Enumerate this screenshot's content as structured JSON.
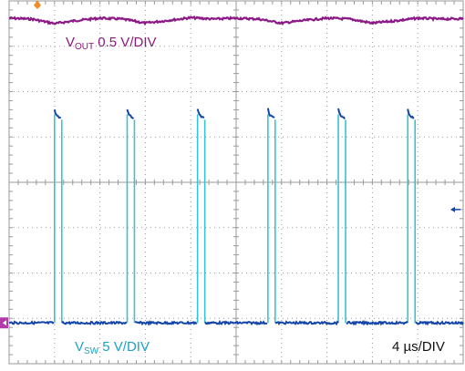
{
  "colors": {
    "vout": "#8b1a87",
    "vsw_edge": "#37c4d2",
    "vsw_trace": "#1446a8",
    "grid": "#9a9a9a",
    "trigger_marker": "#f08c2a",
    "ch_marker": "#b33aa8"
  },
  "labels": {
    "vout_prefix": "V",
    "vout_sub": "OUT",
    "vout_scale": " 0.5 V/DIV",
    "vsw_prefix": "V",
    "vsw_sub": "SW",
    "vsw_scale": " 5 V/DIV",
    "timebase": "4 µs/DIV"
  },
  "chart_data": {
    "type": "line",
    "x_divisions": 10,
    "y_divisions": 8,
    "x_unit": "µs",
    "time_per_div": 4,
    "series": [
      {
        "name": "VOUT",
        "volts_per_div": 0.5,
        "x_div": [
          0,
          0.5,
          1,
          1.5,
          2,
          2.5,
          3,
          3.5,
          4,
          4.5,
          5,
          5.5,
          6,
          6.5,
          7,
          7.5,
          8,
          8.5,
          9,
          9.5,
          10
        ],
        "y_div": [
          7.62,
          7.6,
          7.5,
          7.57,
          7.62,
          7.6,
          7.51,
          7.57,
          7.63,
          7.6,
          7.62,
          7.6,
          7.51,
          7.57,
          7.62,
          7.6,
          7.51,
          7.56,
          7.62,
          7.6,
          7.61
        ]
      },
      {
        "name": "VSW",
        "volts_per_div": 5,
        "low_div": 0.9,
        "high_div": 5.5,
        "pulse_start_div": [
          1.0,
          2.6,
          4.15,
          5.7,
          7.25,
          8.78
        ],
        "pulse_width_div": 0.16
      }
    ]
  }
}
